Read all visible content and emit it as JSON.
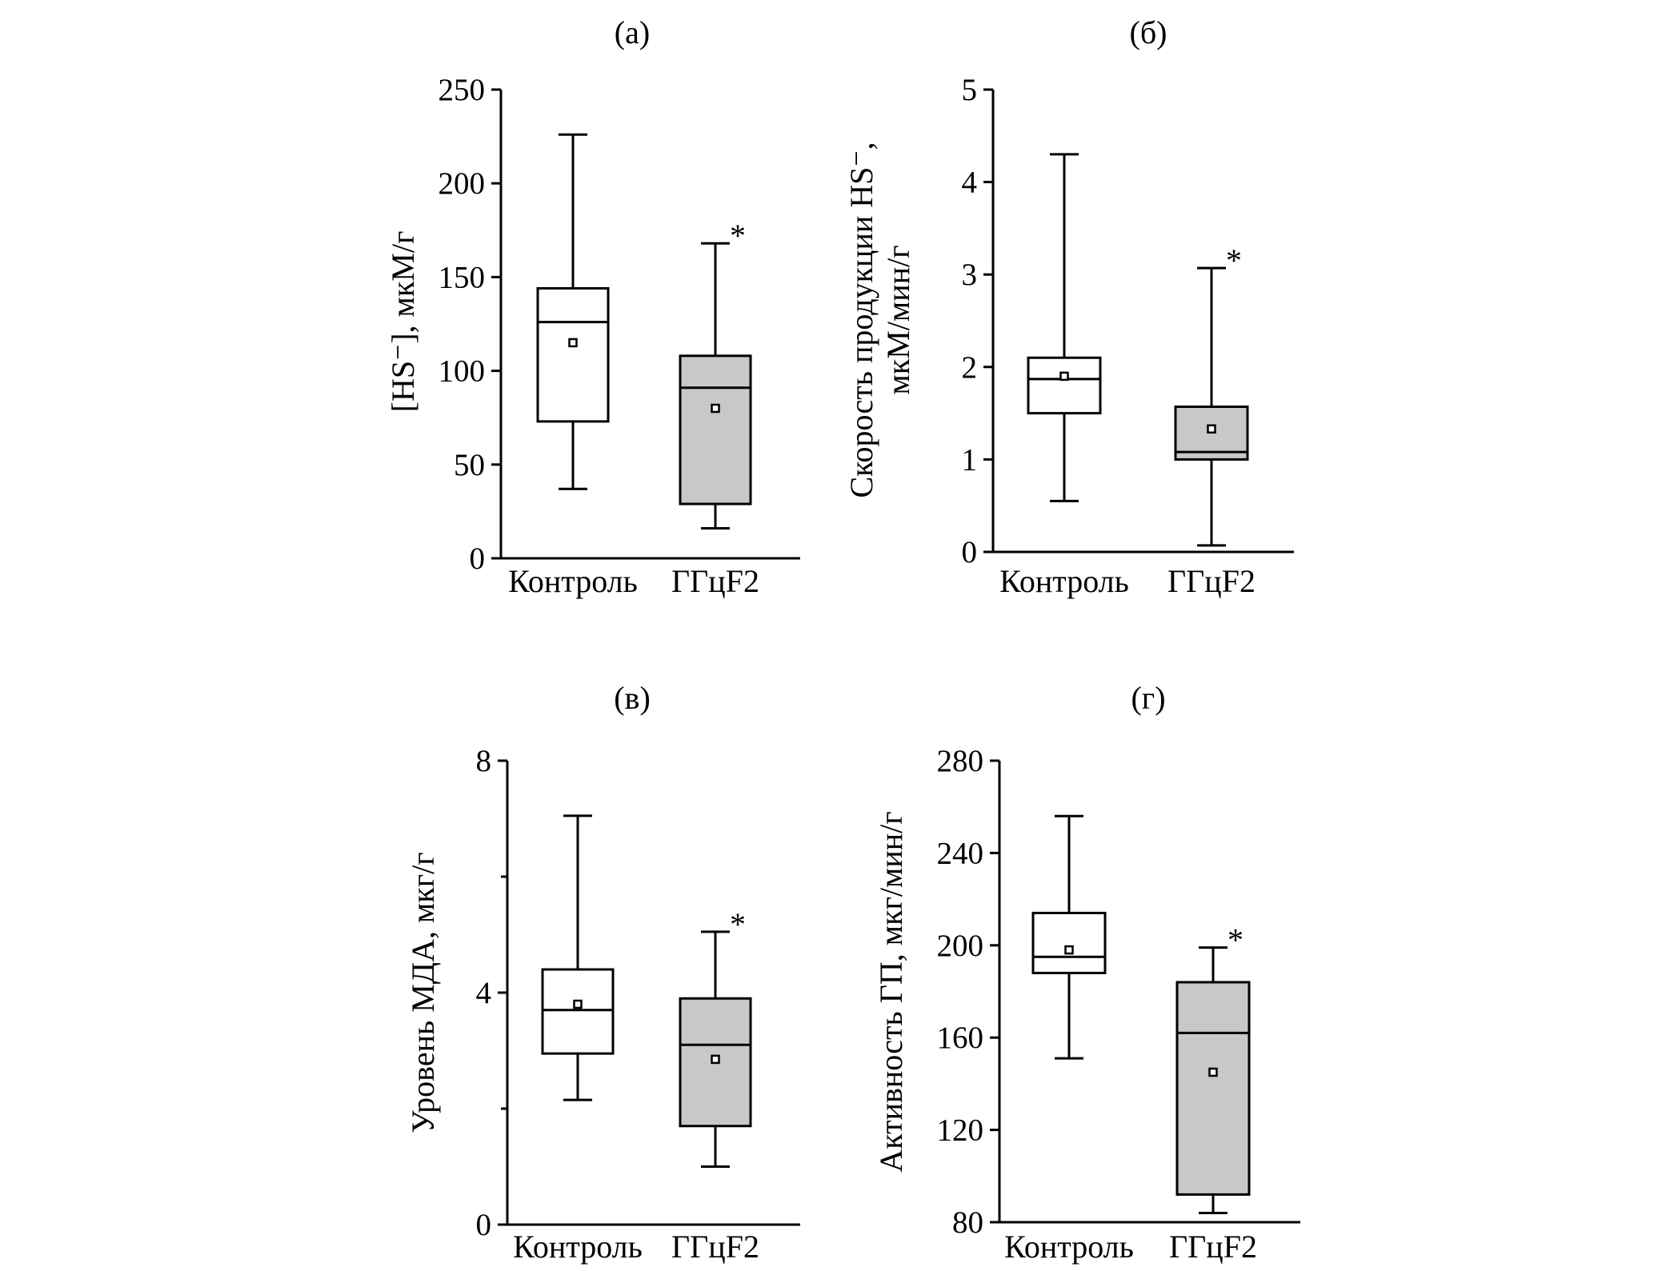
{
  "colors": {
    "axis": "#000000",
    "box_control": "#ffffff",
    "box_treatment": "#c8c8c8",
    "mean_marker": "#ffffff"
  },
  "chart_data": [
    {
      "type": "box",
      "panel_label": "(а)",
      "ylabel_lines": [
        "[HS⁻], мкМ/г"
      ],
      "ylim": [
        0,
        250
      ],
      "yticks": [
        "0",
        "50",
        "100",
        "150",
        "200",
        "250"
      ],
      "ytick_values": [
        0,
        50,
        100,
        150,
        200,
        250
      ],
      "categories": [
        "Контроль",
        "ГГцF2"
      ],
      "boxes": [
        {
          "whisker_low": 37,
          "q1": 73,
          "median": 126,
          "q3": 144,
          "whisker_high": 226,
          "mean": 115,
          "significance": ""
        },
        {
          "whisker_low": 16,
          "q1": 29,
          "median": 91,
          "q3": 108,
          "whisker_high": 168,
          "mean": 80,
          "significance": "*"
        }
      ]
    },
    {
      "type": "box",
      "panel_label": "(б)",
      "ylabel_lines": [
        "Скорость продукции HS⁻,",
        "мкМ/мин/г"
      ],
      "ylim": [
        0,
        5
      ],
      "yticks": [
        "0",
        "1",
        "2",
        "3",
        "4",
        "5"
      ],
      "ytick_values": [
        0,
        1,
        2,
        3,
        4,
        5
      ],
      "categories": [
        "Контроль",
        "ГГцF2"
      ],
      "boxes": [
        {
          "whisker_low": 0.55,
          "q1": 1.5,
          "median": 1.87,
          "q3": 2.1,
          "whisker_high": 4.3,
          "mean": 1.9,
          "significance": ""
        },
        {
          "whisker_low": 0.07,
          "q1": 1.0,
          "median": 1.08,
          "q3": 1.57,
          "whisker_high": 3.07,
          "mean": 1.33,
          "significance": "*"
        }
      ]
    },
    {
      "type": "box",
      "panel_label": "(в)",
      "ylabel_lines": [
        "Уровень МДА, мкг/г"
      ],
      "ylim": [
        0,
        8
      ],
      "yticks": [
        "0",
        "4",
        "8"
      ],
      "ytick_values": [
        0,
        4,
        8
      ],
      "minor_tick_values": [
        2,
        6
      ],
      "categories": [
        "Контроль",
        "ГГцF2"
      ],
      "boxes": [
        {
          "whisker_low": 2.15,
          "q1": 2.95,
          "median": 3.7,
          "q3": 4.4,
          "whisker_high": 7.05,
          "mean": 3.8,
          "significance": ""
        },
        {
          "whisker_low": 1.0,
          "q1": 1.7,
          "median": 3.1,
          "q3": 3.9,
          "whisker_high": 5.05,
          "mean": 2.85,
          "significance": "*"
        }
      ]
    },
    {
      "type": "box",
      "panel_label": "(г)",
      "ylabel_lines": [
        "Активность ГП, мкг/мин/г"
      ],
      "ylim": [
        80,
        280
      ],
      "yticks": [
        "80",
        "120",
        "160",
        "200",
        "240",
        "280"
      ],
      "ytick_values": [
        80,
        120,
        160,
        200,
        240,
        280
      ],
      "categories": [
        "Контроль",
        "ГГцF2"
      ],
      "boxes": [
        {
          "whisker_low": 151,
          "q1": 188,
          "median": 195,
          "q3": 214,
          "whisker_high": 256,
          "mean": 198,
          "significance": ""
        },
        {
          "whisker_low": 84,
          "q1": 92,
          "median": 162,
          "q3": 184,
          "whisker_high": 199,
          "mean": 145,
          "significance": "*"
        }
      ]
    }
  ]
}
